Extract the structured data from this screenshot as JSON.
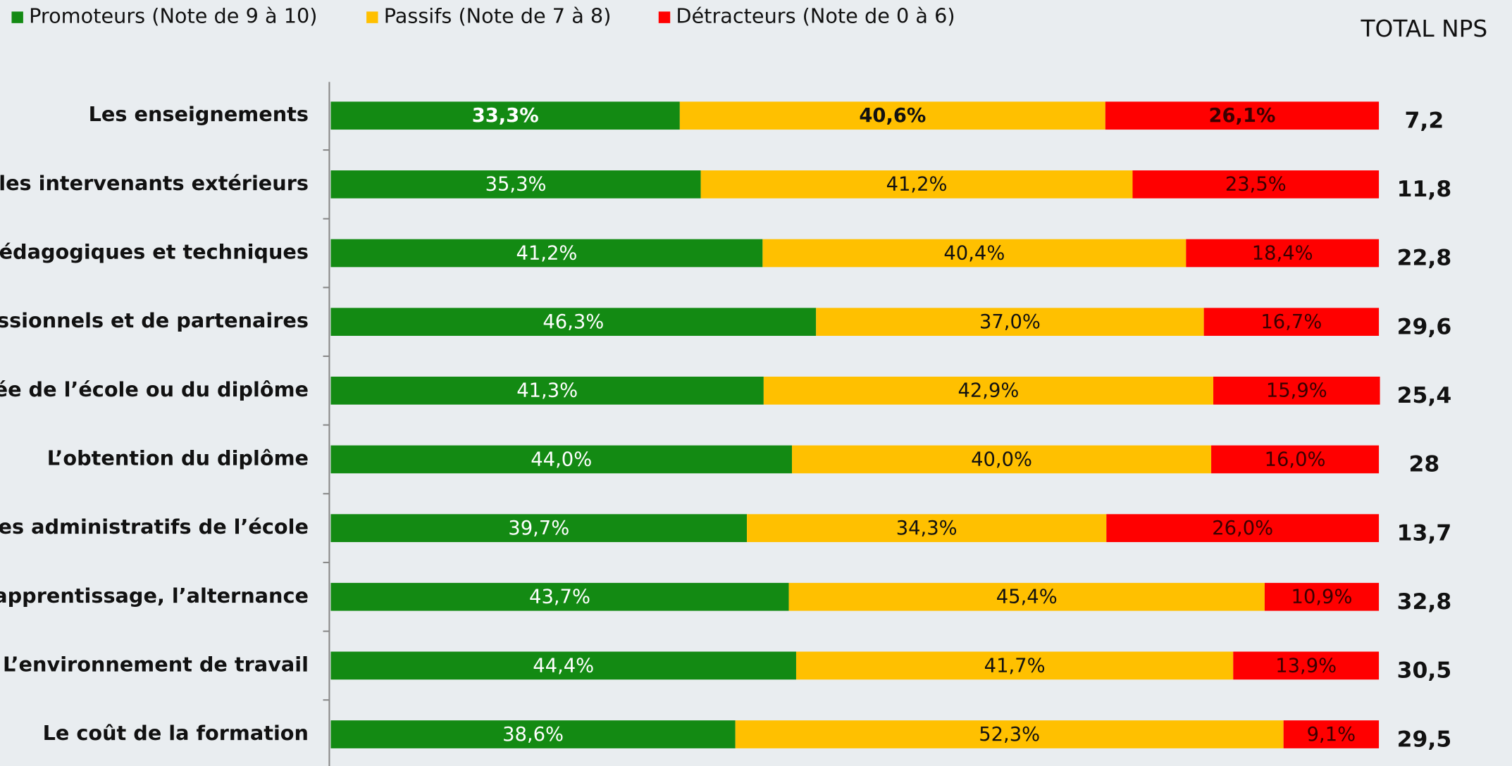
{
  "chart_data": {
    "type": "stacked_bar_horizontal",
    "categories": [
      "Les enseignements",
      "ral, les intervenants extérieurs",
      "s pédagogiques et techniques",
      "ofessionnels et de partenaires",
      "mée de l’école ou du diplôme",
      "L’obtention du diplôme",
      "rvices administratifs de l’école",
      "L’apprentissage, l’alternance",
      "L’environnement de travail",
      "Le coût de la formation"
    ],
    "xlim": [
      0,
      100
    ],
    "series": [
      {
        "name": "Promoteurs (Note de 9 à 10)",
        "color": "#138a13",
        "values": [
          33.3,
          35.3,
          41.2,
          46.3,
          41.3,
          44.0,
          39.7,
          43.7,
          44.4,
          38.6
        ],
        "value_labels": [
          "33,3%",
          "35,3%",
          "41,2%",
          "46,3%",
          "41,3%",
          "44,0%",
          "39,7%",
          "43,7%",
          "44,4%",
          "38,6%"
        ]
      },
      {
        "name": "Passifs (Note de 7 à 8)",
        "color": "#ffc000",
        "values": [
          40.6,
          41.2,
          40.4,
          37.0,
          42.9,
          40.0,
          34.3,
          45.4,
          41.7,
          52.3
        ],
        "value_labels": [
          "40,6%",
          "41,2%",
          "40,4%",
          "37,0%",
          "42,9%",
          "40,0%",
          "34,3%",
          "45,4%",
          "41,7%",
          "52,3%"
        ]
      },
      {
        "name": "Détracteurs (Note de 0 à 6)",
        "color": "#ff0000",
        "values": [
          26.1,
          23.5,
          18.4,
          16.7,
          15.9,
          16.0,
          26.0,
          10.9,
          13.9,
          9.1
        ],
        "value_labels": [
          "26,1%",
          "23,5%",
          "18,4%",
          "16,7%",
          "15,9%",
          "16,0%",
          "26,0%",
          "10,9%",
          "13,9%",
          "9,1%"
        ]
      }
    ],
    "nps": {
      "title": "TOTAL NPS",
      "values": [
        7.2,
        11.8,
        22.8,
        29.6,
        25.4,
        28,
        13.7,
        32.8,
        30.5,
        29.5
      ],
      "value_labels": [
        "7,2",
        "11,8",
        "22,8",
        "29,6",
        "25,4",
        "28",
        "13,7",
        "32,8",
        "30,5",
        "29,5"
      ]
    }
  }
}
